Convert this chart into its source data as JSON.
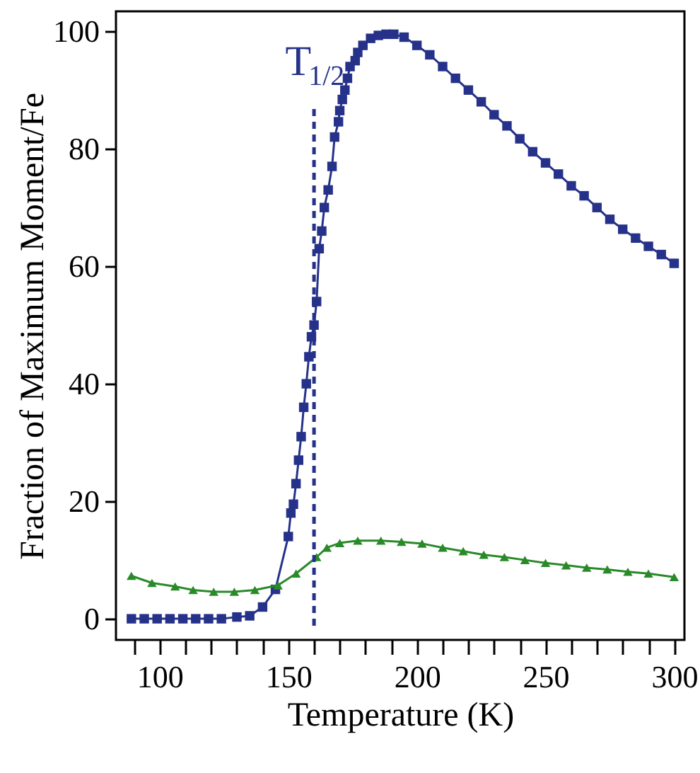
{
  "chart_data": {
    "type": "line",
    "xlabel": "Temperature (K)",
    "ylabel": "Fraction of Maximum Moment/Fe",
    "xlim": [
      83,
      304
    ],
    "ylim": [
      -3.6,
      103.4
    ],
    "xticks": [
      {
        "value": 90,
        "label": null
      },
      100,
      {
        "value": 110,
        "label": null
      },
      {
        "value": 120,
        "label": null
      },
      {
        "value": 130,
        "label": null
      },
      {
        "value": 140,
        "label": null
      },
      150,
      {
        "value": 160,
        "label": null
      },
      {
        "value": 170,
        "label": null
      },
      {
        "value": 180,
        "label": null
      },
      {
        "value": 190,
        "label": null
      },
      200,
      {
        "value": 210,
        "label": null
      },
      {
        "value": 220,
        "label": null
      },
      {
        "value": 230,
        "label": null
      },
      {
        "value": 240,
        "label": null
      },
      250,
      {
        "value": 260,
        "label": null
      },
      {
        "value": 270,
        "label": null
      },
      {
        "value": 280,
        "label": null
      },
      {
        "value": 290,
        "label": null
      },
      300
    ],
    "yticks": [
      0,
      20,
      40,
      60,
      80,
      100
    ],
    "grid": false,
    "ref_lines": [
      {
        "axis": "x",
        "value": 160,
        "label": "T$_{1/2}$",
        "color": "#26328a",
        "line_style": "dashed"
      }
    ],
    "series": [
      {
        "color": "#26328a",
        "marker": "square",
        "x": [
          89,
          94,
          99,
          104,
          109,
          114,
          119,
          124,
          130,
          135,
          140,
          145,
          150,
          151,
          152,
          153,
          154,
          155,
          156,
          157,
          158,
          159,
          160,
          161,
          162,
          163,
          164,
          165.5,
          167,
          168,
          169.5,
          170,
          171,
          172,
          173,
          174,
          176,
          177,
          179,
          182,
          185,
          188,
          191,
          195,
          200,
          205,
          210,
          215,
          220,
          225,
          230,
          235,
          240,
          245,
          250,
          255,
          260,
          265,
          270,
          275,
          280,
          285,
          290,
          295,
          300
        ],
        "values": [
          0,
          0,
          0,
          0,
          0,
          0,
          0,
          0,
          0.3,
          0.5,
          2,
          5,
          14,
          18,
          19.5,
          23,
          27,
          31,
          36,
          40,
          44.6,
          48,
          50,
          54,
          63,
          66,
          70,
          73,
          77,
          82,
          84.6,
          86.5,
          88.4,
          90,
          92,
          94,
          95,
          96.4,
          97.6,
          98.8,
          99.3,
          99.5,
          99.5,
          99,
          97.6,
          96,
          94,
          92,
          90,
          88,
          85.8,
          83.9,
          81.7,
          79.5,
          77.6,
          75.7,
          73.7,
          72,
          70,
          68,
          66.3,
          64.8,
          63.4,
          62,
          60.5
        ]
      },
      {
        "color": "#2a8a2a",
        "marker": "triangle",
        "x": [
          89,
          97,
          106,
          113,
          121,
          129,
          137,
          146,
          153,
          161,
          165,
          170,
          177,
          186,
          194,
          202,
          210,
          218,
          226,
          234,
          242,
          250,
          258,
          266,
          274,
          282,
          290,
          300
        ],
        "values": [
          7.3,
          6.1,
          5.5,
          4.9,
          4.6,
          4.6,
          4.9,
          5.7,
          7.7,
          10.5,
          12.1,
          12.9,
          13.3,
          13.3,
          13.1,
          12.8,
          12.1,
          11.5,
          10.9,
          10.5,
          10,
          9.5,
          9.1,
          8.7,
          8.4,
          8,
          7.7,
          7.1
        ]
      }
    ]
  }
}
